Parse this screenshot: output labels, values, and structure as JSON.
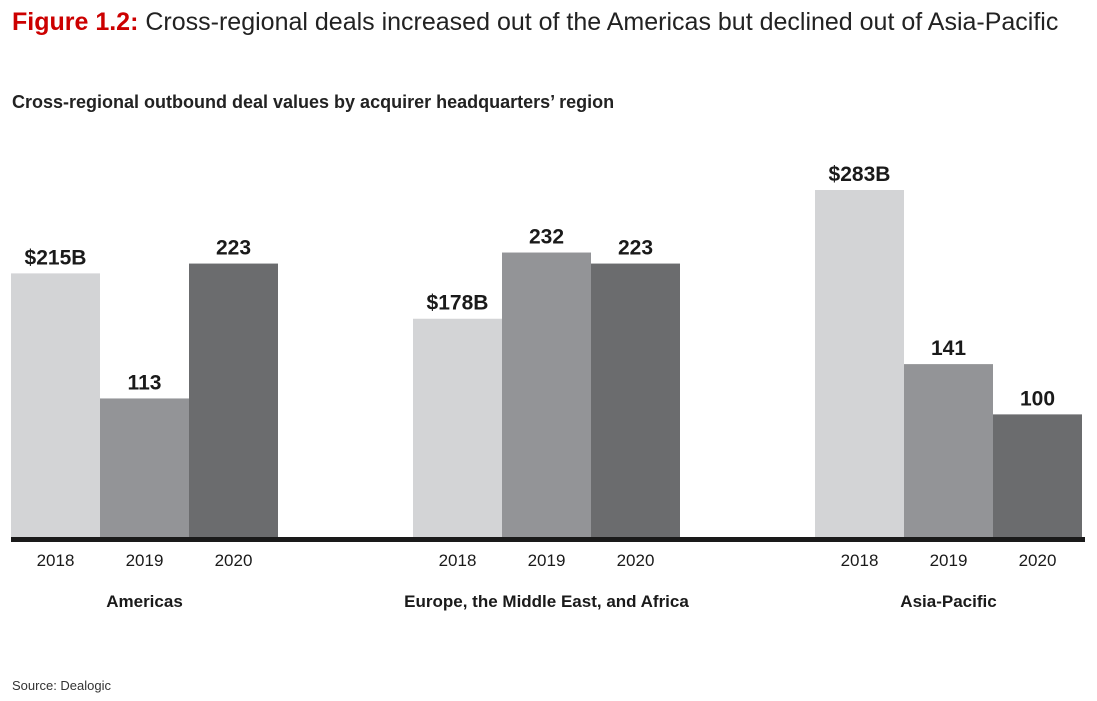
{
  "figure": {
    "label": "Figure 1.2:",
    "title": "Cross-regional deals increased out of the Americas but declined out of Asia-Pacific"
  },
  "source": "Source: Dealogic",
  "colors": {
    "2018": "#d3d4d6",
    "2019": "#939497",
    "2020": "#6b6c6e",
    "baseline": "#1a1a1a"
  },
  "chart_data": {
    "type": "bar",
    "title": "Cross-regional outbound deal values by acquirer headquarters’ region",
    "xlabel": "",
    "ylabel": "",
    "ylim": [
      0,
      300
    ],
    "grid": false,
    "legend": "none",
    "groups": [
      {
        "name": "Americas",
        "bars": [
          {
            "year": "2018",
            "value": 215,
            "label": "$215B"
          },
          {
            "year": "2019",
            "value": 113,
            "label": "113"
          },
          {
            "year": "2020",
            "value": 223,
            "label": "223"
          }
        ]
      },
      {
        "name": "Europe, the Middle East, and Africa",
        "bars": [
          {
            "year": "2018",
            "value": 178,
            "label": "$178B"
          },
          {
            "year": "2019",
            "value": 232,
            "label": "232"
          },
          {
            "year": "2020",
            "value": 223,
            "label": "223"
          }
        ]
      },
      {
        "name": "Asia-Pacific",
        "bars": [
          {
            "year": "2018",
            "value": 283,
            "label": "$283B"
          },
          {
            "year": "2019",
            "value": 141,
            "label": "141"
          },
          {
            "year": "2020",
            "value": 100,
            "label": "100"
          }
        ]
      }
    ]
  }
}
